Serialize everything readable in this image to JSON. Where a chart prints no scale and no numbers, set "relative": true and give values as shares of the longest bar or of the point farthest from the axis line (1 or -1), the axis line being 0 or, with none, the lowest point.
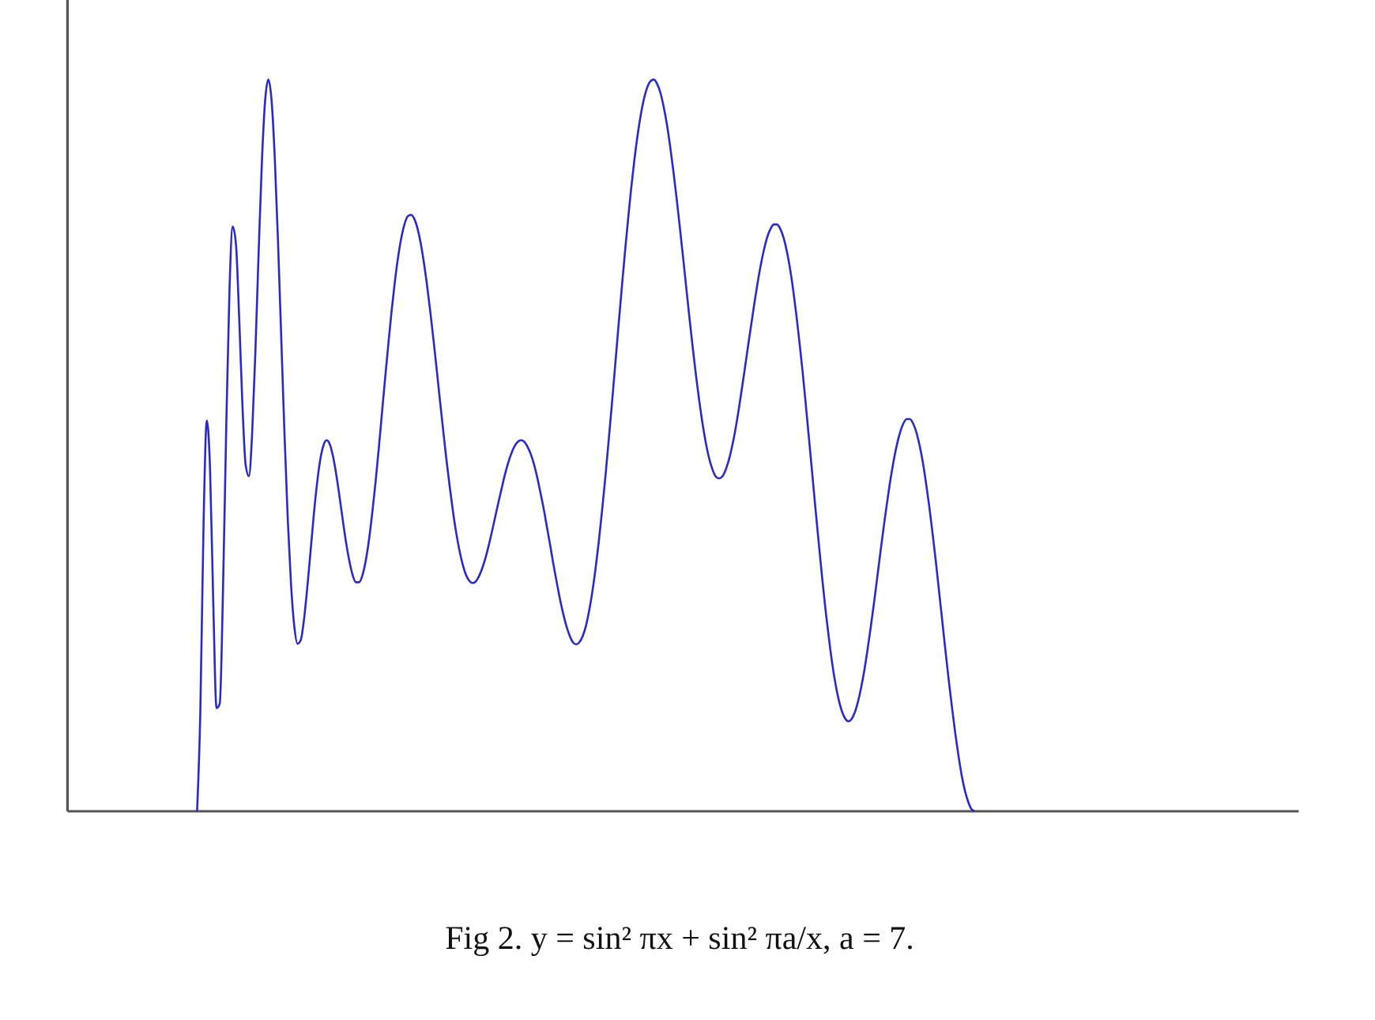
{
  "chart_data": {
    "type": "line",
    "relative": true,
    "color": "#2a2ac8",
    "annotations": [
      "Fig 2. y = sin² πx + sin² πa/x, a = 7."
    ],
    "categories": [
      null,
      null,
      null,
      null,
      null,
      null,
      null,
      null,
      null,
      null,
      null,
      null,
      null,
      null,
      null,
      null,
      null,
      null,
      null,
      null,
      null,
      null,
      null,
      null,
      null,
      null,
      null,
      null,
      null,
      null,
      null,
      null,
      null,
      null,
      null,
      null,
      null,
      null,
      null,
      null,
      null,
      null,
      null,
      null,
      null,
      null,
      null,
      null,
      null,
      null,
      null,
      null,
      null,
      null,
      null,
      null,
      null,
      null,
      null,
      null,
      null,
      null,
      null,
      null,
      null,
      null,
      null,
      null,
      null,
      null,
      null,
      null,
      null,
      null,
      null,
      null,
      null,
      null,
      null,
      null,
      null,
      null,
      null,
      null,
      null,
      null,
      null,
      null,
      null,
      null,
      null,
      null,
      null,
      null,
      null,
      null,
      null,
      null,
      null,
      null,
      null,
      null,
      null,
      null,
      null,
      null,
      null,
      null,
      null,
      null,
      null,
      null,
      null,
      null,
      null,
      null,
      null,
      null,
      null,
      null,
      null,
      null,
      null,
      null,
      null,
      null,
      null,
      null,
      null,
      null,
      null,
      null,
      null,
      null,
      null,
      null,
      null,
      null,
      null,
      null,
      null,
      null,
      null,
      null,
      null,
      null,
      null,
      null,
      null,
      null,
      null,
      null,
      null,
      null,
      null,
      null,
      null,
      null,
      null,
      null,
      null,
      null,
      null,
      null,
      null,
      null,
      null,
      null,
      null,
      null,
      null,
      null,
      null,
      null,
      null,
      null,
      null,
      null,
      null,
      null,
      null,
      null,
      null,
      null,
      null,
      null,
      null,
      null,
      null,
      null,
      null,
      null,
      null,
      null,
      null,
      null,
      null,
      null,
      null,
      null,
      null,
      null,
      null,
      null,
      null,
      null,
      null,
      null,
      null,
      null,
      null,
      null,
      null,
      null,
      null,
      null,
      null,
      null,
      null,
      null,
      null,
      null,
      null,
      null,
      null,
      null,
      null,
      null,
      null,
      null,
      null,
      null,
      null,
      null,
      null,
      null,
      null,
      null,
      null,
      null,
      null,
      null,
      null,
      null,
      null,
      null,
      null,
      null,
      null,
      null,
      null,
      null,
      null,
      null,
      null,
      null,
      null,
      null,
      null,
      null,
      null,
      null,
      null,
      null,
      null,
      null,
      null,
      null,
      null,
      null,
      null,
      null,
      null,
      null,
      null,
      null,
      null,
      null,
      null,
      null,
      null,
      null,
      null,
      null,
      null,
      null,
      null,
      null,
      null,
      null,
      null,
      null,
      null,
      null,
      null,
      null,
      null,
      null,
      null,
      null,
      null,
      null,
      null,
      null,
      null,
      null,
      null,
      null,
      null,
      null,
      null,
      null,
      null,
      null,
      null,
      null,
      null,
      null,
      null,
      null,
      null,
      null,
      null,
      null,
      null,
      null,
      null,
      null,
      null,
      null,
      null,
      null,
      null,
      null,
      null,
      null,
      null,
      null,
      null,
      null,
      null,
      null,
      null,
      null,
      null,
      null,
      null,
      null,
      null,
      null,
      null,
      null,
      null,
      null,
      null,
      null,
      null,
      null,
      null,
      null,
      null,
      null,
      null,
      null,
      null,
      null,
      null,
      null,
      null,
      null,
      null,
      null,
      null,
      null,
      null,
      null,
      null,
      null,
      null,
      null,
      null
    ],
    "values": [
      null,
      null,
      null,
      null,
      null,
      null,
      null,
      null,
      null,
      null,
      null,
      null,
      null,
      null,
      null,
      null,
      null,
      null,
      null,
      null,
      null,
      null,
      null,
      null,
      null,
      null,
      null,
      null,
      null,
      null,
      null,
      null,
      null,
      null,
      null,
      null,
      null,
      null,
      null,
      null,
      0.0,
      0.135,
      0.393,
      0.534,
      0.468,
      0.284,
      0.141,
      0.147,
      0.302,
      0.524,
      0.712,
      0.799,
      0.775,
      0.674,
      0.555,
      0.473,
      0.458,
      0.517,
      0.629,
      0.764,
      0.887,
      0.971,
      1.0,
      0.971,
      0.891,
      0.776,
      0.644,
      0.513,
      0.398,
      0.31,
      0.253,
      0.229,
      0.234,
      0.262,
      0.305,
      0.354,
      0.404,
      0.447,
      0.48,
      0.5,
      0.507,
      0.501,
      0.484,
      0.459,
      0.429,
      0.397,
      0.367,
      0.342,
      0.323,
      0.313,
      0.313,
      0.322,
      0.341,
      0.369,
      0.405,
      0.446,
      0.492,
      0.541,
      0.59,
      0.637,
      0.682,
      0.722,
      0.756,
      0.783,
      0.802,
      0.813,
      0.815,
      0.81,
      0.797,
      0.777,
      0.75,
      0.718,
      0.682,
      0.643,
      0.602,
      0.56,
      0.519,
      0.479,
      0.443,
      0.409,
      0.38,
      0.356,
      0.337,
      0.323,
      0.315,
      0.312,
      0.314,
      0.321,
      0.332,
      0.346,
      0.363,
      0.382,
      0.402,
      0.422,
      0.441,
      0.46,
      0.476,
      0.489,
      0.499,
      0.505,
      0.507,
      0.505,
      0.498,
      0.488,
      0.474,
      0.456,
      0.435,
      0.413,
      0.388,
      0.363,
      0.337,
      0.313,
      0.29,
      0.27,
      0.253,
      0.24,
      0.231,
      0.228,
      0.231,
      0.239,
      0.253,
      0.274,
      0.3,
      0.332,
      0.369,
      0.411,
      0.456,
      0.505,
      0.555,
      0.607,
      0.66,
      0.711,
      0.761,
      0.808,
      0.852,
      0.891,
      0.925,
      0.953,
      0.975,
      0.99,
      0.998,
      1.0,
      0.994,
      0.982,
      0.963,
      0.939,
      0.909,
      0.875,
      0.838,
      0.798,
      0.757,
      0.715,
      0.673,
      0.633,
      0.595,
      0.561,
      0.53,
      0.504,
      0.483,
      0.468,
      0.458,
      0.455,
      0.457,
      0.465,
      0.478,
      0.496,
      0.518,
      0.544,
      0.573,
      0.603,
      0.634,
      0.664,
      0.694,
      0.722,
      0.747,
      0.768,
      0.785,
      0.796,
      0.802,
      0.802,
      0.796,
      0.784,
      0.766,
      0.742,
      0.712,
      0.677,
      0.638,
      0.596,
      0.55,
      0.503,
      0.455,
      0.407,
      0.361,
      0.316,
      0.274,
      0.237,
      0.203,
      0.175,
      0.153,
      0.137,
      0.127,
      0.123,
      0.126,
      0.135,
      0.15,
      0.17,
      0.194,
      0.223,
      0.254,
      0.287,
      0.322,
      0.357,
      0.391,
      0.423,
      0.453,
      0.479,
      0.501,
      0.518,
      0.53,
      0.536,
      0.536,
      0.53,
      0.518,
      0.5,
      0.477,
      0.448,
      0.416,
      0.38,
      0.342,
      0.301,
      0.26,
      0.219,
      0.179,
      0.142,
      0.107,
      0.076,
      0.049,
      0.028,
      0.013,
      0.003,
      0.0,
      null,
      null,
      null,
      null,
      null,
      null,
      null,
      null,
      null,
      null,
      null,
      null,
      null,
      null,
      null,
      null,
      null,
      null,
      null,
      null,
      null,
      null,
      null,
      null,
      null,
      null,
      null,
      null,
      null,
      null,
      null,
      null,
      null,
      null,
      null,
      null,
      null,
      null,
      null,
      null,
      null,
      null,
      null,
      null,
      null,
      null,
      null,
      null,
      null,
      null,
      null,
      null,
      null,
      null,
      null,
      null,
      null,
      null,
      null,
      null,
      null,
      null,
      null,
      null,
      null,
      null,
      null,
      null,
      null,
      null,
      null,
      null,
      null,
      null,
      null,
      null,
      null,
      null,
      null,
      null,
      null,
      null,
      null,
      null,
      null,
      null,
      null,
      null,
      null,
      null,
      null,
      null,
      null,
      null,
      null,
      null,
      null,
      null,
      null,
      null
    ]
  }
}
